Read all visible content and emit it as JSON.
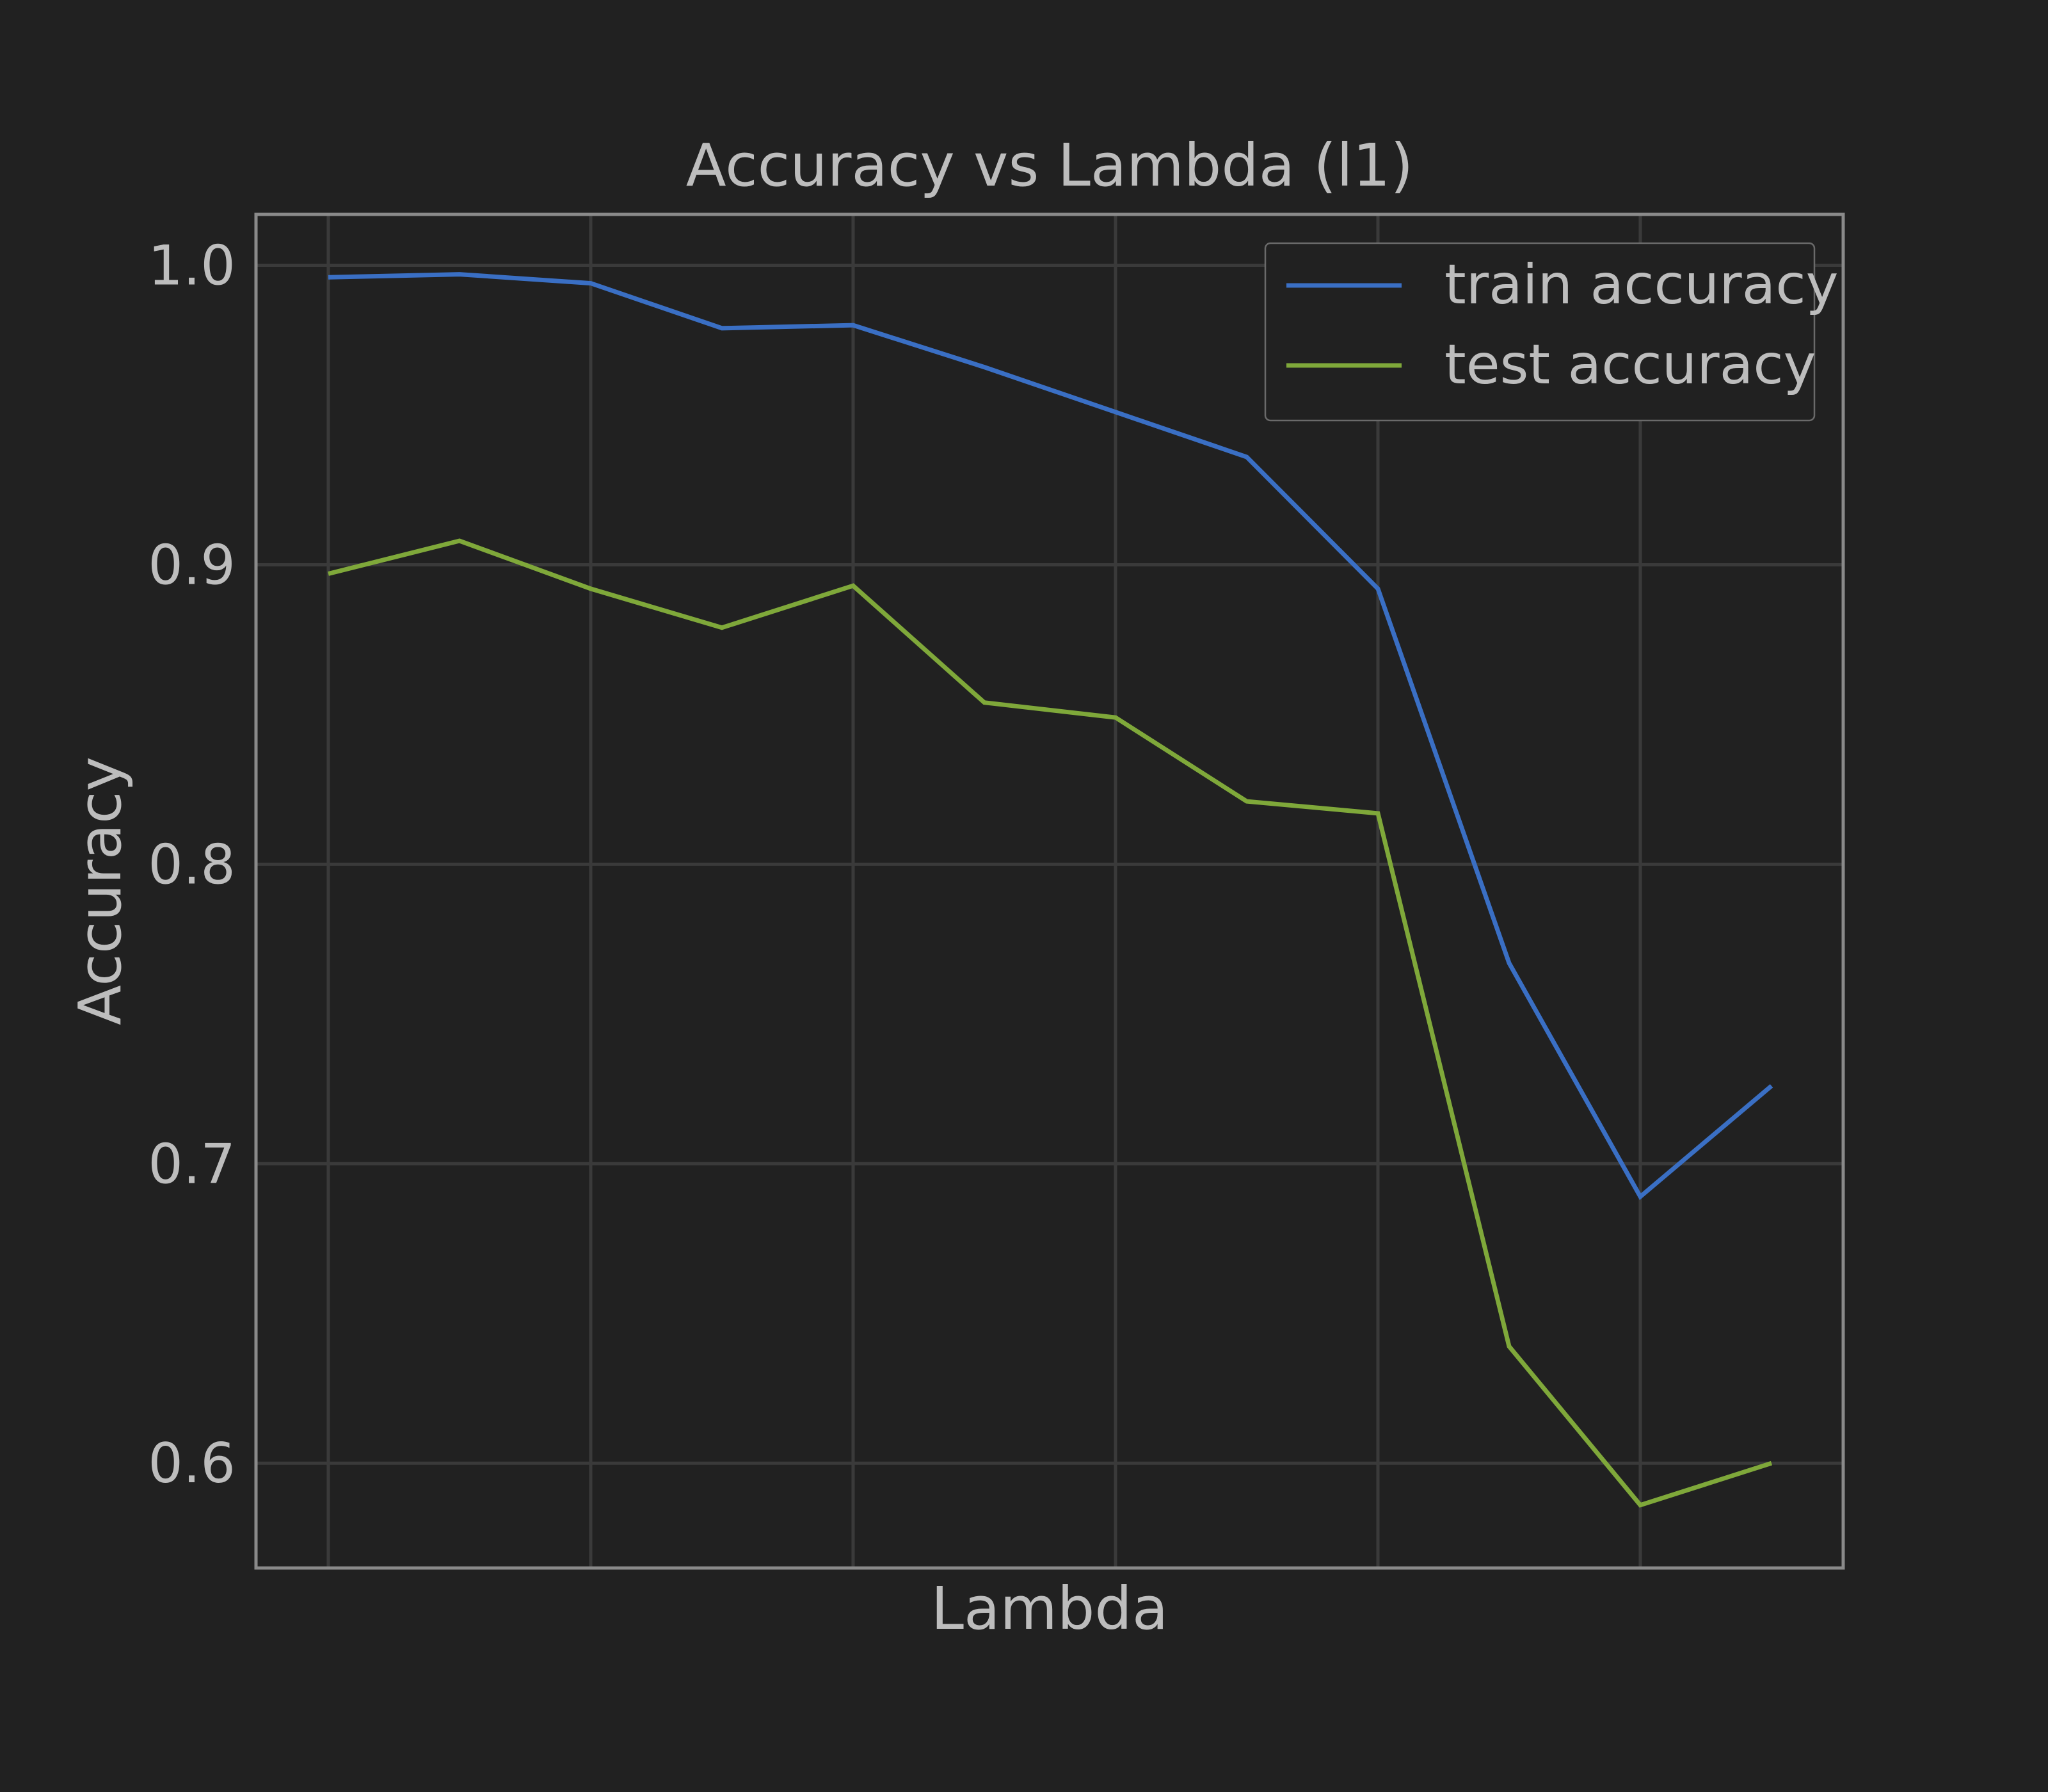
{
  "chart_data": {
    "type": "line",
    "title": "Accuracy vs Lambda (l1)",
    "xlabel": "Lambda",
    "ylabel": "Accuracy",
    "x": [
      0,
      0.5,
      1,
      1.5,
      2,
      2.5,
      3,
      3.5,
      4,
      4.5,
      5,
      5.5
    ],
    "ylim": [
      0.565,
      1.017
    ],
    "yticks": [
      0.6,
      0.7,
      0.8,
      0.9,
      1.0
    ],
    "ytick_labels": [
      "0.6",
      "0.7",
      "0.8",
      "0.9",
      "1.0"
    ],
    "grid": true,
    "legend_position": "top-right",
    "series": [
      {
        "name": "train accuracy",
        "color": "#3a6fc4",
        "values": [
          0.996,
          0.997,
          0.994,
          0.979,
          0.98,
          0.966,
          0.951,
          0.936,
          0.892,
          0.767,
          0.689,
          0.726
        ]
      },
      {
        "name": "test accuracy",
        "color": "#7fa83a",
        "values": [
          0.897,
          0.908,
          0.892,
          0.879,
          0.893,
          0.854,
          0.849,
          0.821,
          0.817,
          0.639,
          0.586,
          0.6
        ]
      }
    ],
    "colors": {
      "background": "#212121",
      "grid": "#3a3a3a",
      "frame": "#8a8a8a",
      "text": "#bdbdbd",
      "legend_border": "#6a6a6a"
    }
  }
}
